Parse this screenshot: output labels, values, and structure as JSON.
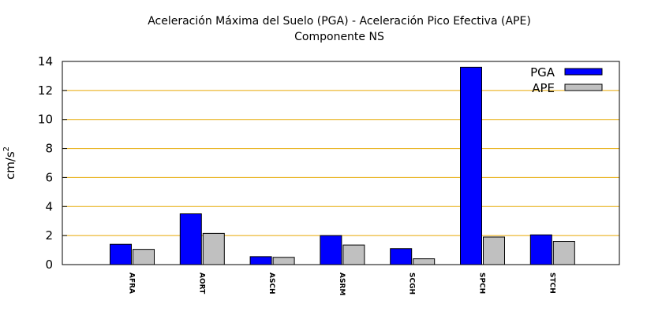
{
  "chart_data": {
    "type": "bar",
    "title": "Aceleración Máxima del Suelo (PGA) -  Aceleración Pico Efectiva (APE)",
    "subtitle": "Componente NS",
    "ylabel_base": "cm/s",
    "ylabel_sup": "2",
    "ylim": [
      0,
      14
    ],
    "yticks": [
      0,
      2,
      4,
      6,
      8,
      10,
      12,
      14
    ],
    "grid": true,
    "legend_position": "top-right",
    "categories": [
      "AFRA",
      "AORT",
      "ASCH",
      "ASRM",
      "SCGH",
      "SPCH",
      "STCH"
    ],
    "series": [
      {
        "name": "PGA",
        "color": "#0000ff",
        "values": [
          1.4,
          3.5,
          0.55,
          2.0,
          1.1,
          13.6,
          2.05
        ]
      },
      {
        "name": "APE",
        "color": "#c0c0c0",
        "values": [
          1.05,
          2.15,
          0.5,
          1.35,
          0.4,
          1.9,
          1.6
        ]
      }
    ],
    "grid_color": "#e6a800"
  }
}
